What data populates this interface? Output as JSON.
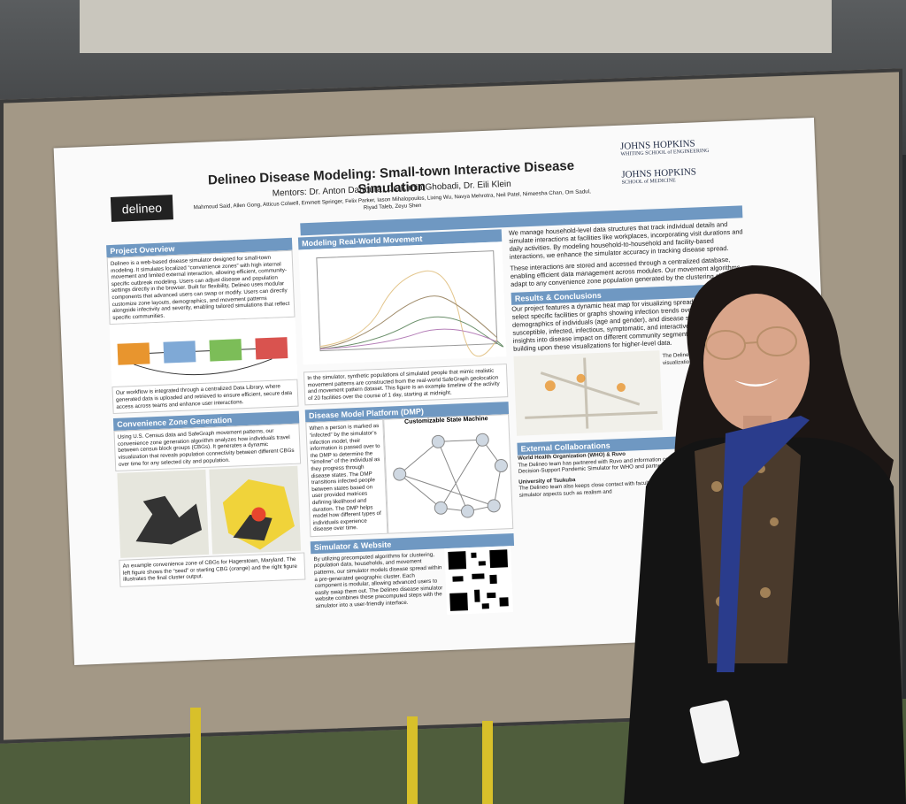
{
  "poster": {
    "title": "Delineo Disease Modeling: Small-town Interactive Disease Simulation",
    "mentors": "Mentors: Dr. Anton Dahbura, Dr. Kimia Ghobadi, Dr. Eili Klein",
    "authors": "Mahmoud Said, Allen Gong, Atticus Colwell, Emmett Springer, Felix Parker, Iason Mihalopoulos, Lixing Wu, Navya Mehrotra, Neil Patel, Nimeesha Chan, Om Sadul, Riyad Taleb, Zeyu Shen",
    "logo": "delineo",
    "affiliations": [
      {
        "name": "JOHNS HOPKINS",
        "school": "WHITING SCHOOL of ENGINEERING"
      },
      {
        "name": "JOHNS HOPKINS",
        "school": "SCHOOL of MEDICINE"
      }
    ],
    "overview": {
      "heading": "Project Overview",
      "text": "Delineo is a web-based disease simulator designed for small-town modeling. It simulates localized “convenience zones” with high internal movement and limited external interaction, allowing efficient, community-specific outbreak modeling. Users can adjust disease and population settings directly in the browser. Built for flexibility, Delineo uses modular components that advanced users can swap or modify. Users can directly customize zone layouts, demographics, and movement patterns alongside infectivity and severity, enabling tailored simulations that reflect specific communities.",
      "workflow": "Our workflow is integrated through a centralized Data Library, where generated data is uploaded and retrieved to ensure efficient, secure data access across teams and enhance user interactions."
    },
    "zones": {
      "heading": "Convenience Zone Generation",
      "text": "Using U.S. Census data and SafeGraph movement patterns, our convenience zone generation algorithm analyzes how individuals travel between census block groups (CBGs). It generates a dynamic visualization that reveals population connectivity between different CBGs over time for any selected city and population.",
      "caption": "An example convenience zone of CBGs for Hagerstown, Maryland. The left figure shows the “seed” or starting CBG (orange) and the right figure illustrates the final cluster output."
    },
    "movement": {
      "heading": "Modeling Real-World Movement",
      "text": "In the simulator, synthetic populations of simulated people that mimic realistic movement patterns are constructed from the real-world SafeGraph geolocation and movement pattern dataset. This figure is an example timeline of the activity of 20 facilities over the course of 1 day, starting at midnight."
    },
    "dmp": {
      "heading": "Disease Model Platform (DMP)",
      "text": "When a person is marked as “infected” by the simulator’s infection model, their information is passed over to the DMP to determine the “timeline” of the individual as they progress through disease states. The DMP transitions infected people between states based on user provided matrices defining likelihood and duration. The DMP helps model how different types of individuals experience disease over time.",
      "figure_title": "Customizable State Machine"
    },
    "website": {
      "heading": "Simulator & Website",
      "text": "By utilizing precomputed algorithms for clustering, population data, households, and movement patterns, our simulator models disease spread within a pre-generated geographic cluster. Each component is modular, allowing advanced users to easily swap them out. The Delineo disease simulator website combines these precomputed steps with the simulator into a user-friendly interface."
    },
    "households": {
      "text1": "We manage household-level data structures that track individual details and simulate interactions at facilities like workplaces, incorporating visit durations and daily activities. By modeling household-to-household and facility-based interactions, we enhance the simulator accuracy in tracking disease spread.",
      "text2": "These interactions are stored and accessed through a centralized database, enabling efficient data management across modules. Our movement algorithms adapt to any convenience zone population generated by the clustering algorithm."
    },
    "results": {
      "heading": "Results & Conclusions",
      "text": "Our project features a dynamic heat map for visualizing spread, allowing users to select specific facilities or graphs showing infection trends over time, demographics of individuals (age and gender), and disease states such as susceptible, infected, infectious, symptomatic, and interactive tool offers detailed insights into disease impact on different community segments, and we plan on building upon these visualizations for higher-level data.",
      "side": "The Delineo simulation visualization website can"
    },
    "collaborations": {
      "heading": "External Collaborations",
      "org1": "World Health Organization (WHO) & Ruvo",
      "text1": "The Delineo team has partnered with Ruvo and information company, and NTT Data, to build a Decision-Support Pandemic Simulator for WHO and partners around the world.",
      "org2": "University of Tsukuba",
      "text2": "The Delineo team also keeps close contact with faculty at the University of Tsukuba in Japan on simulator aspects such as realism and"
    }
  }
}
